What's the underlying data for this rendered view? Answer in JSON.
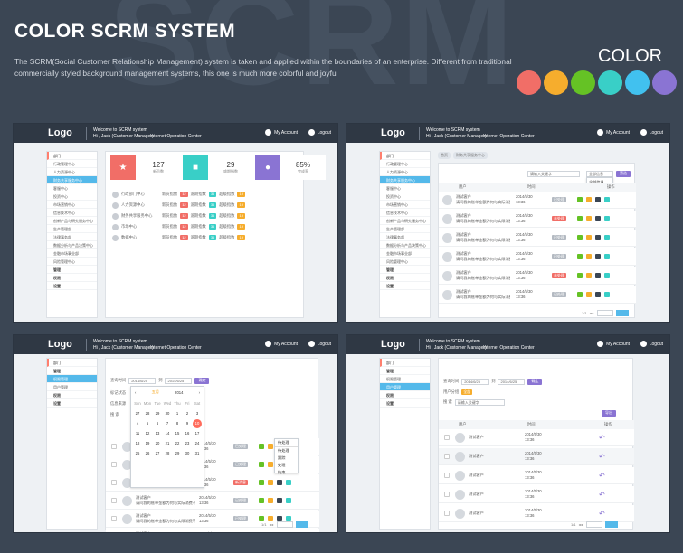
{
  "hero": {
    "background_word": "SCRM",
    "title": "COLOR SCRM SYSTEM",
    "description_line1": "The SCRM(Social Customer Relationship Management) system is taken and applied within the boundaries of an enterprise. Different from traditional",
    "description_line2": "commercially styled background management systems, this one is much more colorful and joyful",
    "color_word": "COLOR",
    "palette": [
      "#f16e67",
      "#f6ad2d",
      "#65c225",
      "#39cfc7",
      "#41c1ef",
      "#8a74d3"
    ]
  },
  "topbar": {
    "logo": "Logo",
    "welcome": "Welcome to SCRM system",
    "user": "Hi , Jack (Customer Manager)",
    "center": "Internet Operation Center",
    "my_account": "My Account",
    "logout": "Logout"
  },
  "panel1": {
    "menu": [
      "部门",
      "行政管理中心",
      "人力资源中心",
      "财务共享服务中心",
      "客服中心",
      "投资中心",
      "市场营销中心",
      "信息技术中心",
      "创新产品与研究服务中心",
      "生产管理部",
      "法律事务部",
      "数据分析与产品决策中心",
      "金融市场事业部",
      "风险管理中心",
      "管理",
      "权限",
      "设置"
    ],
    "stats": [
      {
        "value": "127",
        "label": "新员数",
        "color": "#f16e67",
        "icon": "★"
      },
      {
        "value": "29",
        "label": "盛期指数",
        "color": "#39cfc7",
        "icon": "■"
      },
      {
        "value": "85%",
        "label": "完成率",
        "color": "#8a74d3",
        "icon": "●"
      }
    ],
    "rows": [
      {
        "name": "行政部门中心",
        "a": "新员指数",
        "b": "逾期指数",
        "c": "超级指数"
      },
      {
        "name": "人力资源中心",
        "a": "新员指数",
        "b": "逾期指数",
        "c": "超级指数"
      },
      {
        "name": "财务共享服务中心",
        "a": "新员指数",
        "b": "逾期指数",
        "c": "超级指数"
      },
      {
        "name": "市场中心",
        "a": "新员指数",
        "b": "逾期指数",
        "c": "超级指数"
      },
      {
        "name": "数据中心",
        "a": "新员指数",
        "b": "逾期指数",
        "c": "超级指数"
      }
    ]
  },
  "panel2": {
    "breadcrumb": [
      "首页",
      "财务共享服务中心"
    ],
    "search_placeholder": "请输入关键字",
    "filter": "全部信息",
    "filter_options": [
      "全部信息",
      "已回复信息",
      "未回复信息"
    ],
    "search_button": "筛选",
    "headers": [
      "用户",
      "时间",
      "操作"
    ],
    "user": "测试客户",
    "message": "请问我的账单金额为何与实际消费不一致？",
    "date": "2014/5/30",
    "time": "13:36",
    "status_reply": "已处理",
    "status_new": "未处理",
    "pager": "1/1"
  },
  "panel3": {
    "menu": [
      "部门",
      "管理",
      "权限管理",
      "用户管理",
      "权限",
      "设置"
    ],
    "filters": {
      "date_label": "查询时间",
      "start": "2014/6/25",
      "end": "2014/6/25",
      "status_label": "标记状态",
      "source_label": "信息来源",
      "search_label": "搜 索",
      "button": "确定"
    },
    "calendar": {
      "month": "五月",
      "year": "2014",
      "weekdays": [
        "Sun",
        "Mon",
        "Tue",
        "Wed",
        "Thu",
        "Fri",
        "Sat"
      ],
      "days": [
        "27",
        "28",
        "29",
        "30",
        "1",
        "2",
        "3",
        "4",
        "5",
        "6",
        "7",
        "8",
        "9",
        "10",
        "11",
        "12",
        "13",
        "14",
        "15",
        "16",
        "17",
        "18",
        "19",
        "20",
        "21",
        "22",
        "23",
        "24",
        "25",
        "26",
        "27",
        "28",
        "29",
        "30",
        "31"
      ]
    },
    "dropdown": [
      "待处理",
      "待处理",
      "跟踪",
      "处理",
      "结束"
    ],
    "user": "测试客户",
    "message": "请问我的账单金额为何与实际消费不一致？",
    "date": "2014/5/30",
    "time": "13:36",
    "pager": "1/1"
  },
  "panel4": {
    "menu": [
      "部门",
      "管理",
      "权限管理",
      "用户管理",
      "权限",
      "设置"
    ],
    "filters": {
      "date_label": "查询时间",
      "start": "2014/6/25",
      "end": "2014/6/25",
      "button": "确定",
      "type_label": "用户分组",
      "type_value": "全部",
      "search_label": "搜 索",
      "search_placeholder": "请输入关键字",
      "export": "导出"
    },
    "headers": [
      "用户",
      "时间",
      "操作"
    ],
    "user": "测试客户",
    "date": "2014/5/30",
    "time": "13:36",
    "pager": "1/1"
  }
}
